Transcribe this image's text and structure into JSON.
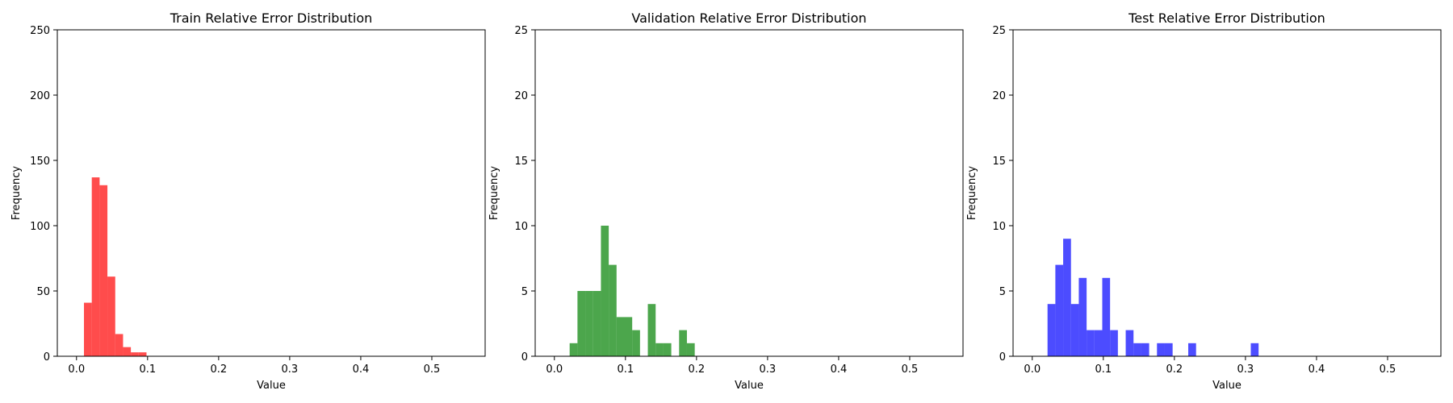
{
  "chart_data": [
    {
      "type": "bar",
      "title": "Train Relative Error Distribution",
      "xlabel": "Value",
      "ylabel": "Frequency",
      "xlim": [
        -0.027,
        0.575
      ],
      "ylim": [
        0,
        250
      ],
      "xticks": [
        0.0,
        0.1,
        0.2,
        0.3,
        0.4,
        0.5
      ],
      "xtick_labels": [
        "0.0",
        "0.1",
        "0.2",
        "0.3",
        "0.4",
        "0.5"
      ],
      "yticks": [
        0,
        50,
        100,
        150,
        200,
        250
      ],
      "ytick_labels": [
        "0",
        "50",
        "100",
        "150",
        "200",
        "250"
      ],
      "bin_width": 0.011,
      "bins_start": [
        0.0105,
        0.0215,
        0.0325,
        0.0435,
        0.0545,
        0.0655,
        0.0765,
        0.0875
      ],
      "values": [
        41,
        137,
        131,
        61,
        17,
        7,
        3,
        3
      ],
      "color": "#ff0000",
      "alpha": 0.7
    },
    {
      "type": "bar",
      "title": "Validation Relative Error Distribution",
      "xlabel": "Value",
      "ylabel": "Frequency",
      "xlim": [
        -0.027,
        0.575
      ],
      "ylim": [
        0,
        25
      ],
      "xticks": [
        0.0,
        0.1,
        0.2,
        0.3,
        0.4,
        0.5
      ],
      "xtick_labels": [
        "0.0",
        "0.1",
        "0.2",
        "0.3",
        "0.4",
        "0.5"
      ],
      "yticks": [
        0,
        5,
        10,
        15,
        20,
        25
      ],
      "ytick_labels": [
        "0",
        "5",
        "10",
        "15",
        "20",
        "25"
      ],
      "bin_width": 0.011,
      "bins_start": [
        0.0215,
        0.0325,
        0.0435,
        0.0545,
        0.0655,
        0.0765,
        0.0875,
        0.0985,
        0.1095,
        0.1205,
        0.1315,
        0.1425,
        0.1535,
        0.1645,
        0.1755,
        0.1865
      ],
      "values": [
        1,
        5,
        5,
        5,
        10,
        7,
        3,
        3,
        2,
        0,
        4,
        1,
        1,
        0,
        2,
        1
      ],
      "color": "#008000",
      "alpha": 0.7
    },
    {
      "type": "bar",
      "title": "Test Relative Error Distribution",
      "xlabel": "Value",
      "ylabel": "Frequency",
      "xlim": [
        -0.027,
        0.575
      ],
      "ylim": [
        0,
        25
      ],
      "xticks": [
        0.0,
        0.1,
        0.2,
        0.3,
        0.4,
        0.5
      ],
      "xtick_labels": [
        "0.0",
        "0.1",
        "0.2",
        "0.3",
        "0.4",
        "0.5"
      ],
      "yticks": [
        0,
        5,
        10,
        15,
        20,
        25
      ],
      "ytick_labels": [
        "0",
        "5",
        "10",
        "15",
        "20",
        "25"
      ],
      "bin_width": 0.011,
      "bins_start": [
        0.0215,
        0.0325,
        0.0435,
        0.0545,
        0.0655,
        0.0765,
        0.0875,
        0.0985,
        0.1095,
        0.1205,
        0.1315,
        0.1425,
        0.1535,
        0.1645,
        0.1755,
        0.1865,
        0.1975,
        0.2085,
        0.2195,
        0.2305,
        0.2415,
        0.2525,
        0.2635,
        0.2745,
        0.2855,
        0.2965,
        0.3075
      ],
      "values": [
        4,
        7,
        9,
        4,
        6,
        2,
        2,
        6,
        2,
        0,
        2,
        1,
        1,
        0,
        1,
        1,
        0,
        0,
        1,
        0,
        0,
        0,
        0,
        0,
        0,
        0,
        1
      ],
      "color": "#0000ff",
      "alpha": 0.7
    }
  ]
}
